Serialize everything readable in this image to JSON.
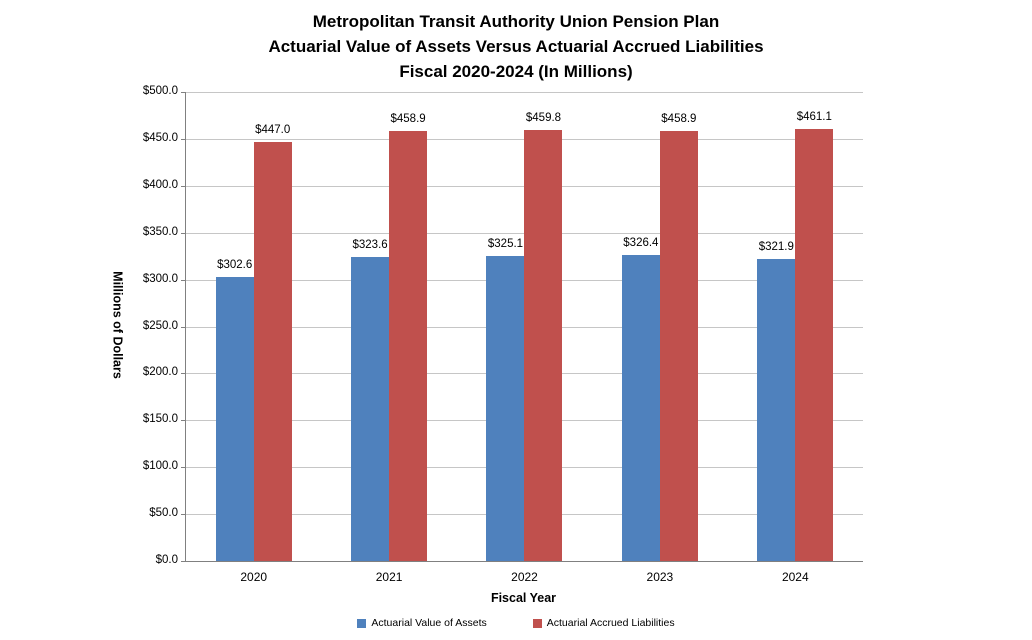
{
  "title": {
    "line1": "Metropolitan Transit Authority Union Pension Plan",
    "line2": "Actuarial Value of Assets Versus Actuarial Accrued Liabilities",
    "line3": "Fiscal 2020-2024 (In Millions)"
  },
  "chart_data": {
    "type": "bar",
    "categories": [
      "2020",
      "2021",
      "2022",
      "2023",
      "2024"
    ],
    "series": [
      {
        "name": "Actuarial Value of Assets",
        "color": "#4F81BD",
        "values": [
          302.6,
          323.6,
          325.1,
          326.4,
          321.9
        ],
        "labels": [
          "$302.6",
          "$323.6",
          "$325.1",
          "$326.4",
          "$321.9"
        ]
      },
      {
        "name": "Actuarial Accrued Liabilities",
        "color": "#C0504D",
        "values": [
          447.0,
          458.9,
          459.8,
          458.9,
          461.1
        ],
        "labels": [
          "$447.0",
          "$458.9",
          "$459.8",
          "$458.9",
          "$461.1"
        ]
      }
    ],
    "xlabel": "Fiscal Year",
    "ylabel": "Millions of Dollars",
    "ylim": [
      0,
      500
    ],
    "ytick_step": 50,
    "ytick_labels": [
      "$0.0",
      "$50.0",
      "$100.0",
      "$150.0",
      "$200.0",
      "$250.0",
      "$300.0",
      "$350.0",
      "$400.0",
      "$450.0",
      "$500.0"
    ],
    "grid": true,
    "legend_position": "bottom",
    "axis_color": "#808080",
    "gridline_color": "#C6C6C6"
  }
}
